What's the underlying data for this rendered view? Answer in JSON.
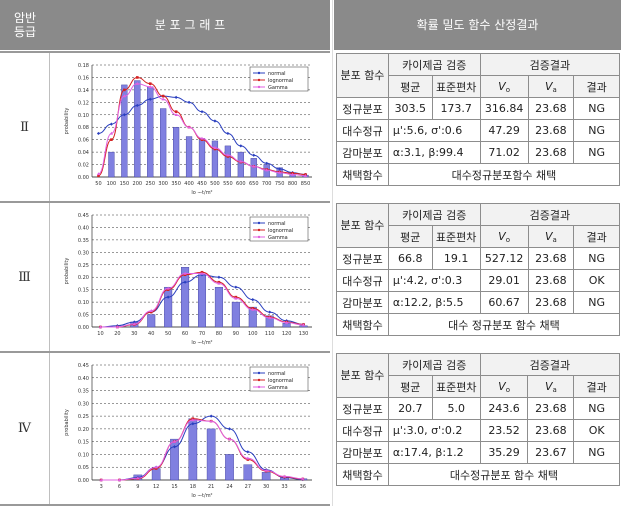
{
  "header": {
    "grade": "암반\n등급",
    "chart": "분 포 그 래 프",
    "result": "확률 밀도 함수 산정결과"
  },
  "legend": [
    "normal",
    "lognormal",
    "Gamma"
  ],
  "ylabel": "probability",
  "colors": {
    "bar": "#8080e0",
    "normal": "#2a3fbf",
    "lognormal": "#d42020",
    "gamma": "#e060e0",
    "header": "#8a8a8a"
  },
  "rows": [
    {
      "grade": "Ⅱ",
      "table": {
        "h1": "분포 함수",
        "chi": "카이제곱 검증",
        "verify": "검증결과",
        "mean_h": "평균",
        "sd_h": "표준편차",
        "v0": "V",
        "v0sub": "o",
        "va": "V",
        "vasub": "a",
        "result_h": "결과",
        "dists": [
          {
            "name": "정규분포",
            "mean": "303.5",
            "sd": "173.7",
            "v0": "316.84",
            "va": "23.68",
            "res": "NG"
          },
          {
            "name": "대수정규",
            "param": "μ':5.6, σ':0.6",
            "v0": "47.29",
            "va": "23.68",
            "res": "NG"
          },
          {
            "name": "감마분포",
            "param": "α:3.1, β:99.4",
            "v0": "71.02",
            "va": "23.68",
            "res": "NG"
          }
        ],
        "select_h": "채택함수",
        "select": "대수정규분포함수 채택"
      }
    },
    {
      "grade": "Ⅲ",
      "table": {
        "h1": "분포 함수",
        "chi": "카이제곱 검증",
        "verify": "검증결과",
        "mean_h": "평균",
        "sd_h": "표준편차",
        "v0": "V",
        "v0sub": "o",
        "va": "V",
        "vasub": "a",
        "result_h": "결과",
        "dists": [
          {
            "name": "정규분포",
            "mean": "66.8",
            "sd": "19.1",
            "v0": "527.12",
            "va": "23.68",
            "res": "NG"
          },
          {
            "name": "대수정규",
            "param": "μ':4.2, σ':0.3",
            "v0": "29.01",
            "va": "23.68",
            "res": "OK"
          },
          {
            "name": "감마분포",
            "param": "α:12.2, β:5.5",
            "v0": "60.67",
            "va": "23.68",
            "res": "NG"
          }
        ],
        "select_h": "채택함수",
        "select": "대수 정규분포 함수 채택"
      }
    },
    {
      "grade": "Ⅳ",
      "table": {
        "h1": "분포 함수",
        "chi": "카이제곱 검증",
        "verify": "검증결과",
        "mean_h": "평균",
        "sd_h": "표준편차",
        "v0": "V",
        "v0sub": "o",
        "va": "V",
        "vasub": "a",
        "result_h": "결과",
        "dists": [
          {
            "name": "정규분포",
            "mean": "20.7",
            "sd": "5.0",
            "v0": "243.6",
            "va": "23.68",
            "res": "NG"
          },
          {
            "name": "대수정규",
            "param": "μ':3.0, σ':0.2",
            "v0": "23.52",
            "va": "23.68",
            "res": "OK"
          },
          {
            "name": "감마분포",
            "param": "α:17.4, β:1.2",
            "v0": "35.29",
            "va": "23.67",
            "res": "NG"
          }
        ],
        "select_h": "채택함수",
        "select": "대수정규분포 함수 채택"
      }
    }
  ],
  "chart_data": [
    {
      "type": "bar",
      "xlabel": "lo ᅮt/m²",
      "ylabel": "probability",
      "categories": [
        "50",
        "100",
        "150",
        "200",
        "250",
        "300",
        "350",
        "400",
        "450",
        "500",
        "550",
        "600",
        "650",
        "700",
        "750",
        "800",
        "850"
      ],
      "values": [
        0.0,
        0.04,
        0.148,
        0.155,
        0.145,
        0.11,
        0.08,
        0.065,
        0.062,
        0.058,
        0.05,
        0.04,
        0.03,
        0.02,
        0.015,
        0.005,
        0.003
      ],
      "yticks": [
        "0.00",
        "0.02",
        "0.04",
        "0.06",
        "0.08",
        "0.10",
        "0.12",
        "0.14",
        "0.16",
        "0.18"
      ],
      "ylim": [
        0,
        0.18
      ],
      "series": [
        {
          "name": "normal",
          "values": [
            0.07,
            0.085,
            0.1,
            0.115,
            0.125,
            0.13,
            0.128,
            0.12,
            0.105,
            0.09,
            0.07,
            0.05,
            0.035,
            0.022,
            0.013,
            0.007,
            0.004
          ]
        },
        {
          "name": "lognormal",
          "values": [
            0.002,
            0.06,
            0.14,
            0.16,
            0.15,
            0.13,
            0.105,
            0.08,
            0.06,
            0.045,
            0.033,
            0.024,
            0.017,
            0.012,
            0.008,
            0.006,
            0.004
          ]
        },
        {
          "name": "Gamma",
          "values": [
            0.005,
            0.07,
            0.13,
            0.15,
            0.145,
            0.125,
            0.1,
            0.08,
            0.062,
            0.047,
            0.035,
            0.025,
            0.017,
            0.011,
            0.007,
            0.004,
            0.002
          ]
        }
      ]
    },
    {
      "type": "bar",
      "xlabel": "lo ᅮt/m²",
      "ylabel": "probability",
      "categories": [
        "10",
        "20",
        "30",
        "40",
        "50",
        "60",
        "70",
        "80",
        "90",
        "100",
        "110",
        "120",
        "130"
      ],
      "values": [
        0.0,
        0.0,
        0.02,
        0.05,
        0.16,
        0.24,
        0.21,
        0.16,
        0.1,
        0.08,
        0.045,
        0.015,
        0.005
      ],
      "yticks": [
        "0.00",
        "0.05",
        "0.10",
        "0.15",
        "0.20",
        "0.25",
        "0.30",
        "0.35",
        "0.40",
        "0.45"
      ],
      "ylim": [
        0,
        0.45
      ],
      "series": [
        {
          "name": "normal",
          "values": [
            0.0,
            0.005,
            0.02,
            0.06,
            0.12,
            0.18,
            0.21,
            0.2,
            0.16,
            0.11,
            0.06,
            0.025,
            0.01
          ]
        },
        {
          "name": "lognormal",
          "values": [
            0.0,
            0.0,
            0.01,
            0.06,
            0.15,
            0.21,
            0.22,
            0.18,
            0.12,
            0.075,
            0.04,
            0.02,
            0.01
          ]
        },
        {
          "name": "Gamma",
          "values": [
            0.0,
            0.0,
            0.012,
            0.065,
            0.155,
            0.215,
            0.215,
            0.175,
            0.115,
            0.07,
            0.037,
            0.018,
            0.008
          ]
        }
      ]
    },
    {
      "type": "bar",
      "xlabel": "lo ᅮt/m²",
      "ylabel": "probability",
      "categories": [
        "3",
        "6",
        "9",
        "12",
        "15",
        "18",
        "21",
        "24",
        "27",
        "30",
        "33",
        "36"
      ],
      "values": [
        0.0,
        0.0,
        0.02,
        0.045,
        0.16,
        0.24,
        0.2,
        0.1,
        0.06,
        0.03,
        0.01,
        0.005
      ],
      "yticks": [
        "0.00",
        "0.05",
        "0.10",
        "0.15",
        "0.20",
        "0.25",
        "0.30",
        "0.35",
        "0.40",
        "0.45"
      ],
      "ylim": [
        0,
        0.45
      ],
      "series": [
        {
          "name": "normal",
          "values": [
            0.0,
            0.0,
            0.01,
            0.05,
            0.13,
            0.22,
            0.25,
            0.2,
            0.11,
            0.04,
            0.01,
            0.002
          ]
        },
        {
          "name": "lognormal",
          "values": [
            0.0,
            0.0,
            0.005,
            0.045,
            0.15,
            0.24,
            0.23,
            0.16,
            0.08,
            0.035,
            0.012,
            0.004
          ]
        },
        {
          "name": "Gamma",
          "values": [
            0.0,
            0.0,
            0.007,
            0.05,
            0.15,
            0.235,
            0.23,
            0.16,
            0.085,
            0.037,
            0.014,
            0.005
          ]
        }
      ]
    }
  ]
}
